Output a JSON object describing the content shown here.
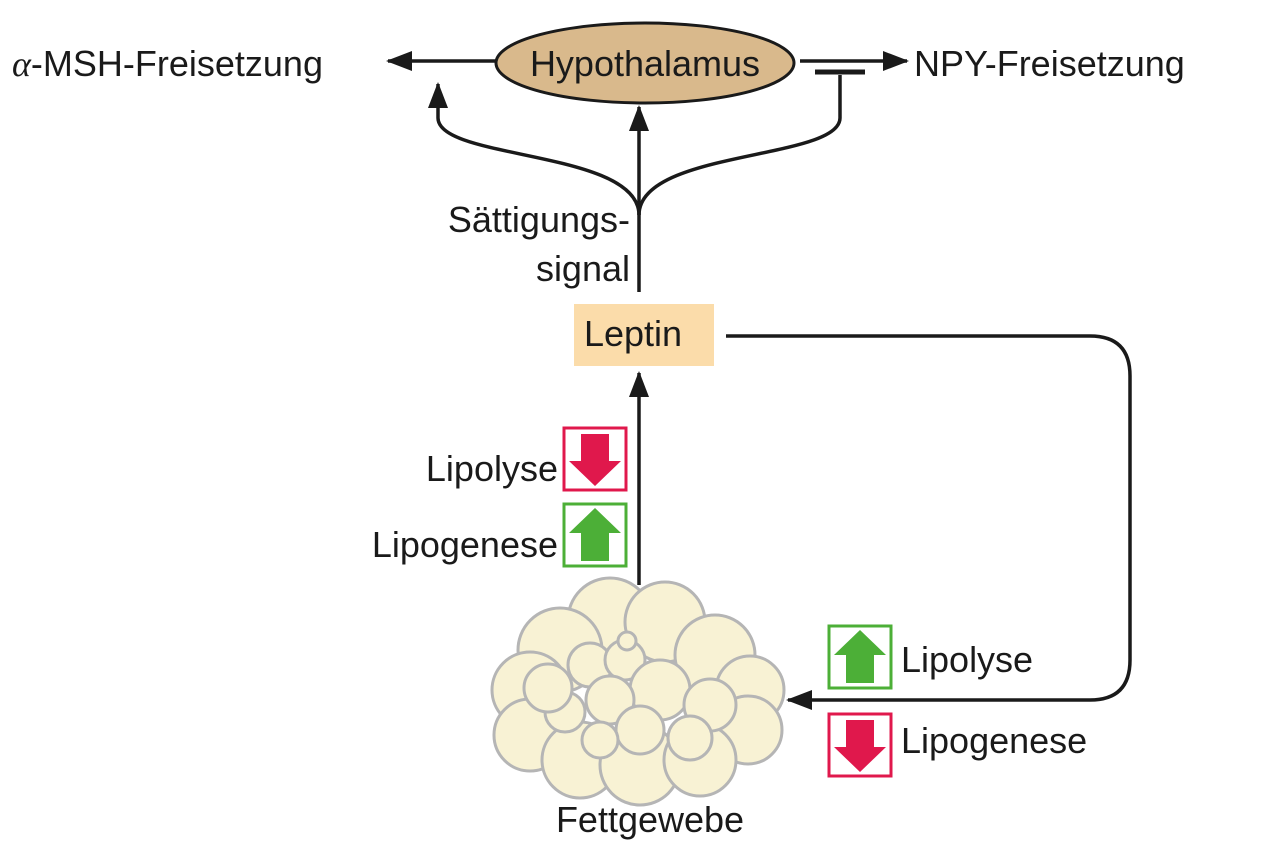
{
  "hypothalamus": {
    "label": "Hypothalamus"
  },
  "alpha_msh": {
    "symbol": "α",
    "label": "-MSH-Freisetzung"
  },
  "npy": {
    "label": "NPY-Freisetzung"
  },
  "saettigung": {
    "line1": "Sättigungs-",
    "line2": "signal"
  },
  "leptin": {
    "label": "Leptin"
  },
  "left_effects": {
    "lipolyse": "Lipolyse",
    "lipogenese": "Lipogenese"
  },
  "right_effects": {
    "lipolyse": "Lipolyse",
    "lipogenese": "Lipogenese"
  },
  "fettgewebe": {
    "label": "Fettgewebe"
  },
  "colors": {
    "hypothalamus_fill": "#d9b98c",
    "leptin_fill": "#fbdcaa",
    "up_arrow": "#4caf37",
    "down_arrow": "#e0184c",
    "fat_cell": "#f8f2d4",
    "fat_stroke": "#b5b5b5",
    "line": "#1a1a1a"
  }
}
